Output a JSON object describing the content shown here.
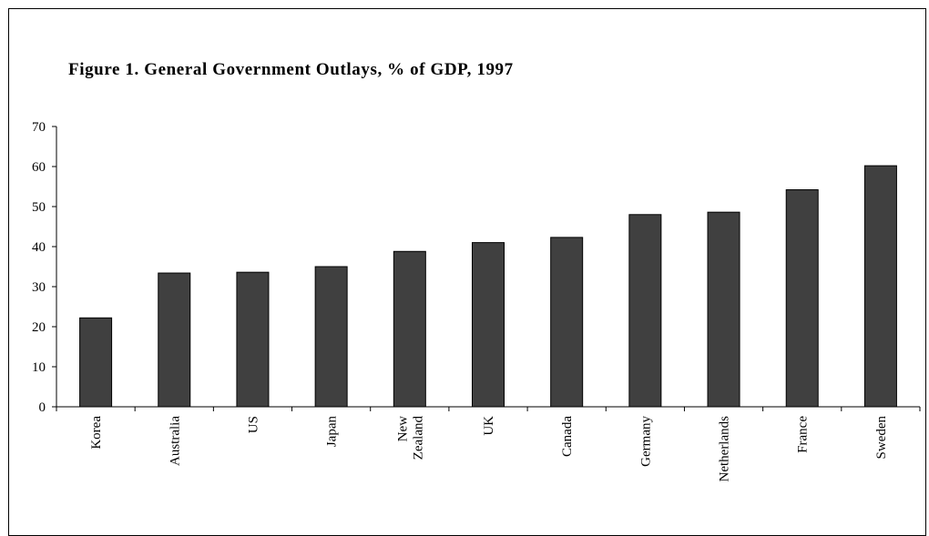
{
  "chart_data": {
    "type": "bar",
    "title": "Figure 1. General Government Outlays, % of GDP, 1997",
    "categories": [
      [
        "Korea"
      ],
      [
        "Australia"
      ],
      [
        "US"
      ],
      [
        "Japan"
      ],
      [
        "New",
        "Zealand"
      ],
      [
        "UK"
      ],
      [
        "Canada"
      ],
      [
        "Germany"
      ],
      [
        "Netherlands"
      ],
      [
        "France"
      ],
      [
        "Sweden"
      ]
    ],
    "values": [
      22.2,
      33.4,
      33.6,
      35.0,
      38.8,
      41.0,
      42.3,
      48.0,
      48.6,
      54.2,
      60.2
    ],
    "yticks": [
      0,
      10,
      20,
      30,
      40,
      50,
      60,
      70
    ],
    "ylim": [
      0,
      70
    ],
    "xlabel": "",
    "ylabel": "",
    "grid": false,
    "legend": "none",
    "bar_color": "#404040",
    "bar_edge_color": "#000000"
  }
}
